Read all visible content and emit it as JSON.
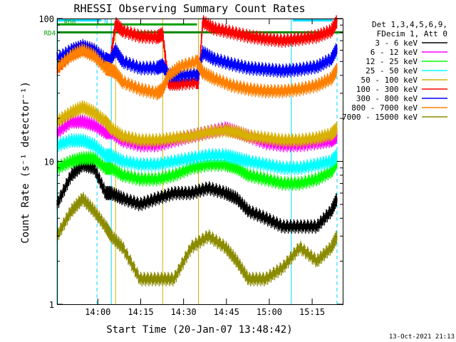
{
  "chart_data": {
    "type": "line",
    "title": "RHESSI Observing Summary Count Rates",
    "xlabel": "Start Time (20-Jan-07 13:48:42)",
    "ylabel": "Count Rate (s⁻¹ detector⁻¹)",
    "yscale": "log",
    "ylim": [
      1,
      100
    ],
    "xlim_min": [
      -3,
      97
    ],
    "x_unit": "minutes since 13:48:42",
    "x_tick_labels": [
      "14:00",
      "14:15",
      "14:30",
      "14:45",
      "15:00",
      "15:15"
    ],
    "x_tick_min": [
      11.3,
      26.3,
      41.3,
      56.3,
      71.3,
      86.3
    ],
    "y_tick_labels": [
      "1",
      "10",
      "100"
    ],
    "y_tick_values": [
      1,
      10,
      100
    ],
    "legend_header": [
      "Det 1,3,4,5,6,9,",
      "FDecim 1, Att 0"
    ],
    "legend_placement": "right",
    "date_stamp": "13-Oct-2021 21:13",
    "annotations": [
      {
        "text": "RD0",
        "y": 95,
        "color": "#00a000"
      },
      {
        "text": "RD4",
        "y": 80,
        "color": "#00a000"
      },
      {
        "text": "N",
        "x_min": 12.5,
        "y": 97,
        "color": "#00c8ff"
      }
    ],
    "flags": [
      {
        "name": "N",
        "color": "#00d8ff",
        "ranges": [
          [
            -3,
            12.5
          ],
          [
            79.5,
            93.5
          ]
        ],
        "y": 97
      },
      {
        "name": "RD0",
        "color": "#00a000",
        "ranges": [
          [
            -3,
            46
          ]
        ],
        "y": 91
      },
      {
        "name": "RD4",
        "color": "#008800",
        "ranges": [
          [
            -3,
            97
          ]
        ],
        "y": 80
      }
    ],
    "vlines": [
      {
        "x_min": -3,
        "color": "#00d8ff",
        "style": "solid"
      },
      {
        "x_min": 11,
        "color": "#00d8ff",
        "style": "dash"
      },
      {
        "x_min": 16,
        "color": "#00d8ff",
        "style": "solid"
      },
      {
        "x_min": 79,
        "color": "#00d8ff",
        "style": "solid"
      },
      {
        "x_min": 95,
        "color": "#00d8ff",
        "style": "dash"
      },
      {
        "x_min": 17.5,
        "color": "#d8b000",
        "style": "solid"
      },
      {
        "x_min": 34,
        "color": "#d8b000",
        "style": "solid"
      },
      {
        "x_min": 46.5,
        "color": "#d8b000",
        "style": "solid"
      }
    ],
    "series": [
      {
        "name": "3 - 6 keV",
        "color": "#000000",
        "x": [
          -3,
          2,
          6,
          10,
          14,
          16,
          20,
          26,
          32,
          38,
          44,
          50,
          56,
          60,
          64,
          70,
          76,
          82,
          88,
          93,
          95
        ],
        "y": [
          5,
          8,
          9.5,
          9,
          6,
          6,
          5.5,
          5,
          5.5,
          6,
          6,
          6.5,
          6,
          5.5,
          4.5,
          4,
          3.5,
          3.5,
          3.5,
          4.5,
          5.5
        ]
      },
      {
        "name": "6 - 12 keV",
        "color": "#ff00ff",
        "x": [
          -3,
          2,
          6,
          10,
          14,
          16,
          20,
          26,
          32,
          38,
          44,
          50,
          56,
          60,
          64,
          70,
          76,
          82,
          88,
          93,
          95
        ],
        "y": [
          16,
          19,
          19,
          18,
          16,
          16,
          14,
          13,
          13,
          14,
          15,
          16,
          17,
          16,
          15,
          13.5,
          13,
          13,
          13.5,
          14,
          15
        ]
      },
      {
        "name": "12 - 25 keV",
        "color": "#00ff00",
        "x": [
          -3,
          2,
          6,
          10,
          14,
          16,
          20,
          26,
          32,
          38,
          44,
          50,
          56,
          60,
          64,
          70,
          76,
          82,
          88,
          93,
          95
        ],
        "y": [
          9,
          10,
          10.5,
          10.5,
          9,
          9,
          8,
          7.5,
          7.5,
          8,
          9,
          9.5,
          9.5,
          9,
          8,
          7.5,
          7,
          7,
          7.5,
          8.5,
          10
        ]
      },
      {
        "name": "25 - 50 keV",
        "color": "#00ffff",
        "x": [
          -3,
          2,
          6,
          10,
          14,
          16,
          20,
          26,
          32,
          38,
          44,
          50,
          56,
          60,
          64,
          70,
          76,
          82,
          88,
          93,
          95
        ],
        "y": [
          13,
          14,
          14,
          13,
          11,
          11,
          10,
          9.5,
          9.5,
          10,
          10.5,
          11,
          11,
          10.5,
          10,
          9.5,
          9,
          9,
          9.5,
          10,
          11
        ]
      },
      {
        "name": "50 - 100 keV",
        "color": "#d8b000",
        "x": [
          -3,
          2,
          6,
          10,
          14,
          16,
          20,
          26,
          32,
          38,
          44,
          50,
          56,
          60,
          64,
          70,
          76,
          82,
          88,
          93,
          95
        ],
        "y": [
          19,
          22,
          24,
          22,
          19,
          17,
          15,
          14,
          14,
          14.5,
          15,
          16,
          16.5,
          16,
          15,
          14.5,
          14,
          14,
          14.5,
          15.5,
          17
        ]
      },
      {
        "name": "100 - 300 keV",
        "color": "#ff0000",
        "x": [
          -3,
          2,
          6,
          10,
          14,
          15.5,
          17.5,
          20,
          26,
          32,
          34,
          36,
          40,
          46,
          46.5,
          48,
          52,
          58,
          64,
          70,
          76,
          82,
          88,
          93,
          95
        ],
        "y": [
          45,
          58,
          62,
          58,
          48,
          48,
          92,
          82,
          75,
          74,
          78,
          35,
          35,
          36,
          36,
          95,
          85,
          80,
          75,
          72,
          70,
          72,
          75,
          82,
          96
        ]
      },
      {
        "name": "300 - 800 keV",
        "color": "#0000ff",
        "x": [
          -3,
          2,
          6,
          10,
          14,
          15.5,
          17.5,
          20,
          26,
          32,
          34,
          36,
          40,
          46,
          46.5,
          48,
          52,
          58,
          64,
          70,
          76,
          82,
          88,
          93,
          95
        ],
        "y": [
          52,
          60,
          64,
          60,
          52,
          50,
          60,
          50,
          45,
          45,
          47,
          40,
          40,
          41,
          41,
          58,
          52,
          48,
          45,
          44,
          43,
          44,
          46,
          52,
          62
        ]
      },
      {
        "name": "800 - 7000 keV",
        "color": "#ff8000",
        "x": [
          -3,
          2,
          6,
          10,
          14,
          15.5,
          17.5,
          20,
          26,
          32,
          34,
          36,
          40,
          46,
          46.5,
          48,
          52,
          58,
          64,
          70,
          76,
          82,
          88,
          93,
          95
        ],
        "y": [
          45,
          55,
          60,
          55,
          45,
          44,
          42,
          36,
          32,
          30,
          32,
          40,
          46,
          50,
          48,
          42,
          38,
          34,
          32,
          31,
          31,
          32,
          34,
          38,
          44
        ]
      },
      {
        "name": "7000 - 15000 keV",
        "color": "#8b8b00",
        "x": [
          -3,
          2,
          6,
          10,
          14,
          16,
          20,
          26,
          32,
          38,
          44,
          50,
          56,
          60,
          64,
          70,
          76,
          82,
          88,
          93,
          95
        ],
        "y": [
          3,
          4.5,
          5.5,
          4.5,
          3.5,
          3,
          2.5,
          1.5,
          1.5,
          1.5,
          2.5,
          3,
          2.5,
          2,
          1.5,
          1.5,
          1.8,
          2.5,
          2,
          2.5,
          3
        ]
      }
    ]
  }
}
